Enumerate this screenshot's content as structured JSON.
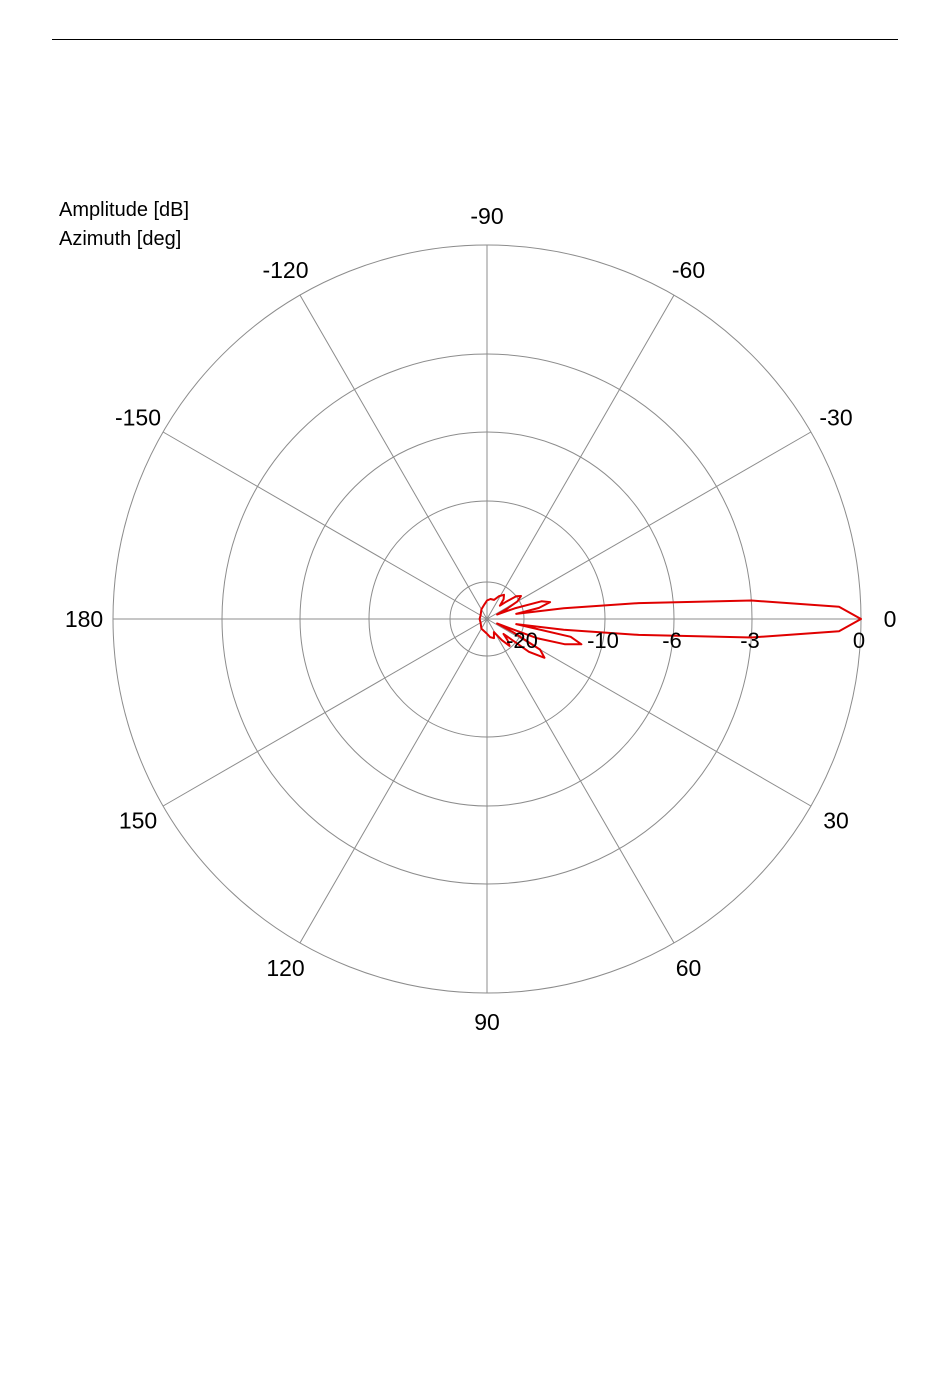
{
  "chart_data": {
    "type": "polar-line",
    "labels": [
      "Amplitude [dB]",
      "Azimuth [deg]"
    ],
    "angle_ticks": [
      "0",
      "-30",
      "-60",
      "-90",
      "-120",
      "-150",
      "180",
      "150",
      "120",
      "90",
      "60",
      "30"
    ],
    "angle_tick_values": [
      0,
      -30,
      -60,
      -90,
      -120,
      -150,
      180,
      150,
      120,
      90,
      60,
      30
    ],
    "radial_ticks": [
      "-20",
      "-10",
      "-6",
      "-3",
      "0"
    ],
    "radial_tick_values": [
      -20,
      -10,
      -6,
      -3,
      0
    ],
    "radial_range": [
      -30,
      0
    ],
    "grid": true,
    "series": [
      {
        "color": "#e00000",
        "azimuth_deg": [
          -180,
          -150,
          -120,
          -100,
          -90,
          -80,
          -70,
          -62,
          -55,
          -50,
          -46,
          -42,
          -38,
          -34,
          -30,
          -27,
          -24,
          -21,
          -18,
          -15,
          -12,
          -10,
          -8,
          -6,
          -4,
          -2,
          0,
          2,
          4,
          6,
          8,
          10,
          12,
          15,
          18,
          21,
          24,
          27,
          30,
          34,
          38,
          42,
          46,
          50,
          55,
          62,
          70,
          80,
          90,
          100,
          120,
          150,
          180
        ],
        "amplitude_db": [
          -28,
          -28,
          -27,
          -26,
          -25,
          -24.5,
          -24.5,
          -23,
          -22,
          -23,
          -25,
          -23,
          -20,
          -19.5,
          -20.5,
          -24,
          -27,
          -22,
          -17.5,
          -16.5,
          -18,
          -22,
          -15,
          -8,
          -3,
          -0.6,
          0,
          -0.6,
          -3,
          -8,
          -15,
          -22,
          -14,
          -12.5,
          -14.5,
          -18,
          -27,
          -22,
          -17,
          -16,
          -18,
          -24,
          -22,
          -20.5,
          -23,
          -26,
          -24.5,
          -25,
          -26,
          -26.5,
          -27,
          -28,
          -28
        ]
      }
    ]
  }
}
